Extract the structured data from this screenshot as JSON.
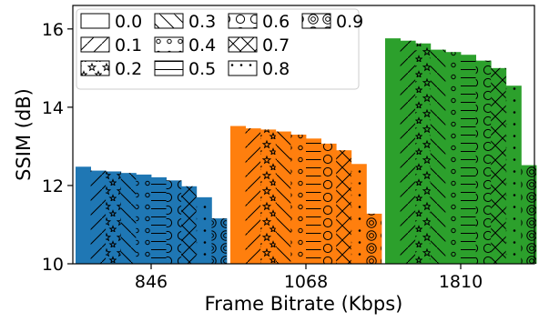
{
  "chart_data": {
    "type": "bar",
    "title": "",
    "xlabel": "Frame Bitrate (Kbps)",
    "ylabel": "SSIM (dB)",
    "ylim": [
      10,
      16.6
    ],
    "yticks": [
      "10",
      "12",
      "14",
      "16"
    ],
    "grid": false,
    "legend_placement": "top-left",
    "legend_cols": 4,
    "categories": [
      "846",
      "1068",
      "1810"
    ],
    "category_colors": [
      "#1f77b4",
      "#ff7f0e",
      "#2ca02c"
    ],
    "series": [
      {
        "name": "0.0",
        "hatch": "none",
        "values": [
          12.48,
          13.52,
          15.76
        ]
      },
      {
        "name": "0.1",
        "hatch": "slash",
        "values": [
          12.38,
          13.46,
          15.7
        ]
      },
      {
        "name": "0.2",
        "hatch": "star",
        "values": [
          12.36,
          13.43,
          15.63
        ]
      },
      {
        "name": "0.3",
        "hatch": "bslash",
        "values": [
          12.32,
          13.38,
          15.47
        ]
      },
      {
        "name": "0.4",
        "hatch": "o",
        "values": [
          12.28,
          13.3,
          15.41
        ]
      },
      {
        "name": "0.5",
        "hatch": "hline",
        "values": [
          12.21,
          13.2,
          15.34
        ]
      },
      {
        "name": "0.6",
        "hatch": "bigo",
        "values": [
          12.13,
          13.07,
          15.19
        ]
      },
      {
        "name": "0.7",
        "hatch": "x",
        "values": [
          11.98,
          12.9,
          15.0
        ]
      },
      {
        "name": "0.8",
        "hatch": "dot",
        "values": [
          11.7,
          12.55,
          14.55
        ]
      },
      {
        "name": "0.9",
        "hatch": "bigO",
        "values": [
          11.16,
          11.28,
          12.52
        ]
      }
    ]
  }
}
